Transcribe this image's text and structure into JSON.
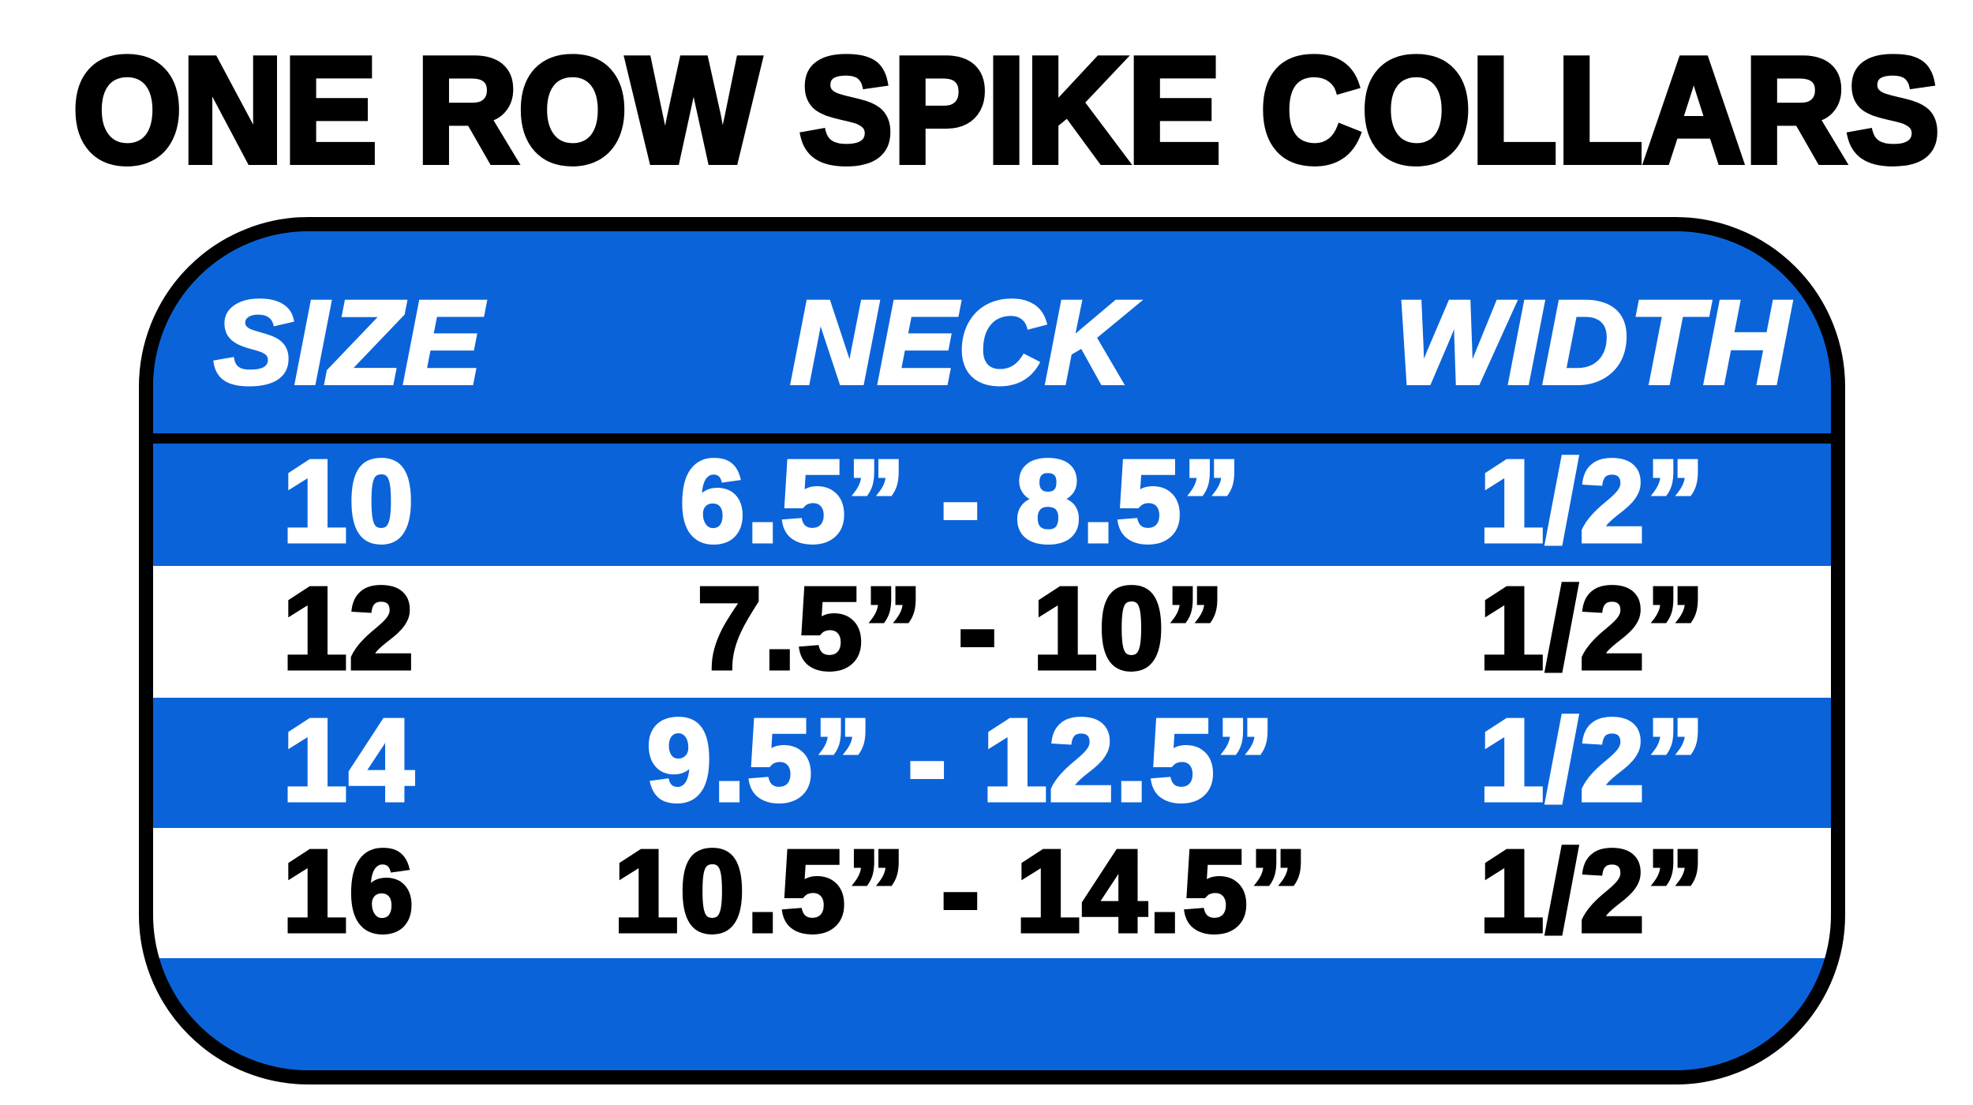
{
  "title": "ONE ROW SPIKE COLLARS",
  "colors": {
    "blue": "#0b63d9",
    "black": "#000000",
    "white": "#ffffff"
  },
  "table": {
    "headers": [
      "SIZE",
      "NECK",
      "WIDTH"
    ],
    "rows": [
      {
        "size": "10",
        "neck": "6.5” - 8.5”",
        "width": "1/2”"
      },
      {
        "size": "12",
        "neck": "7.5” - 10”",
        "width": "1/2”"
      },
      {
        "size": "14",
        "neck": "9.5” - 12.5”",
        "width": "1/2”"
      },
      {
        "size": "16",
        "neck": "10.5” - 14.5”",
        "width": "1/2”"
      }
    ]
  }
}
